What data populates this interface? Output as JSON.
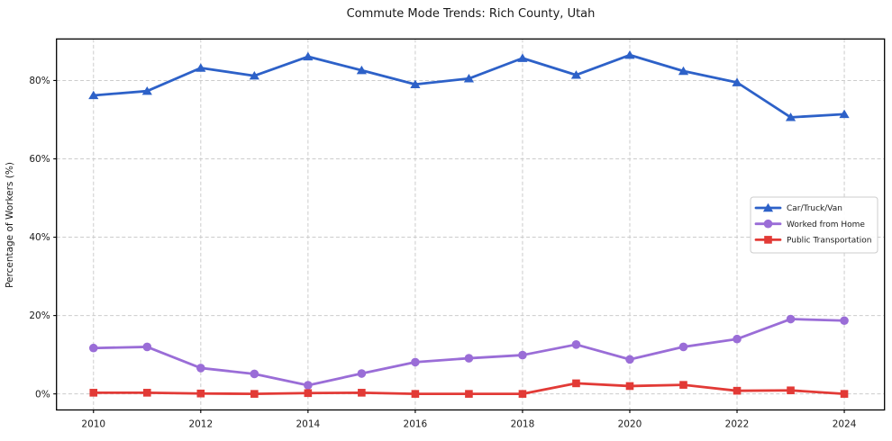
{
  "chart_data": {
    "type": "line",
    "title": "Commute Mode Trends: Rich County, Utah",
    "xlabel": "",
    "ylabel": "Percentage of Workers (%)",
    "x": [
      2010,
      2011,
      2012,
      2013,
      2014,
      2015,
      2016,
      2017,
      2018,
      2019,
      2020,
      2021,
      2022,
      2023,
      2024
    ],
    "x_ticks": [
      2010,
      2012,
      2014,
      2016,
      2018,
      2020,
      2022,
      2024
    ],
    "x_tick_labels": [
      "2010",
      "2012",
      "2014",
      "2016",
      "2018",
      "2020",
      "2022",
      "2024"
    ],
    "y_ticks": [
      0,
      20,
      40,
      60,
      80
    ],
    "y_tick_labels": [
      "0%",
      "20%",
      "40%",
      "60%",
      "80%"
    ],
    "xlim": [
      2009.31,
      2024.75
    ],
    "ylim": [
      -4.1,
      90.6
    ],
    "grid": true,
    "legend_position": "center-right",
    "series": [
      {
        "name": "Car/Truck/Van",
        "color": "#2d61c8",
        "marker": "triangle",
        "values": [
          76.2,
          77.3,
          83.2,
          81.2,
          86.1,
          82.6,
          79.0,
          80.5,
          85.7,
          81.4,
          86.5,
          82.4,
          79.5,
          70.6,
          71.4
        ]
      },
      {
        "name": "Worked from Home",
        "color": "#9a6dd7",
        "marker": "circle",
        "values": [
          11.7,
          12.0,
          6.6,
          5.1,
          2.2,
          5.2,
          8.1,
          9.1,
          9.9,
          12.6,
          8.8,
          12.0,
          14.0,
          19.1,
          18.7
        ]
      },
      {
        "name": "Public Transportation",
        "color": "#e23a36",
        "marker": "square",
        "values": [
          0.3,
          0.3,
          0.1,
          0.0,
          0.2,
          0.3,
          0.0,
          0.0,
          0.0,
          2.7,
          2.0,
          2.3,
          0.8,
          0.9,
          0.0
        ]
      }
    ],
    "style": {
      "grid_color": "#cccccc",
      "frame_color": "#000000",
      "background": "#ffffff",
      "line_width": 2.8,
      "title_color": "#1a1a1a"
    }
  }
}
